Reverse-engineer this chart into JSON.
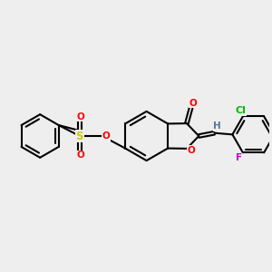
{
  "bg_color": "#eeeeee",
  "bond_color": "#000000",
  "bond_width": 1.5,
  "dbo": 0.055,
  "atom_colors": {
    "O": "#ff0000",
    "S": "#cccc00",
    "Cl": "#00bb00",
    "F": "#cc00cc",
    "H": "#557799"
  },
  "font_size": 7.5
}
